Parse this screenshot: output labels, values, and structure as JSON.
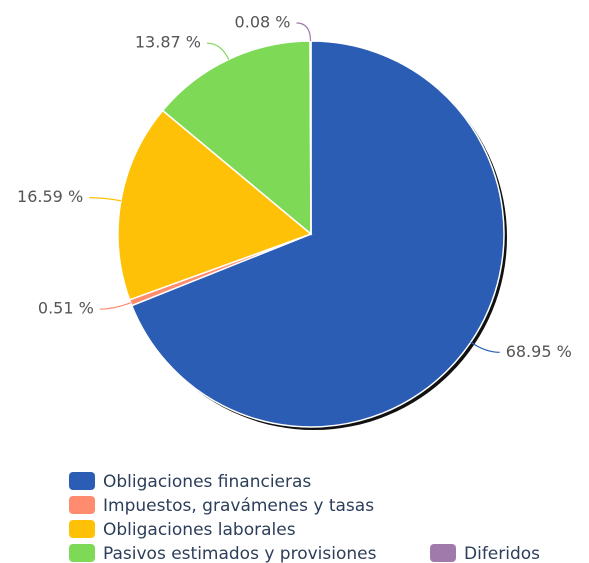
{
  "chart_data": {
    "type": "pie",
    "categories": [
      "Obligaciones financieras",
      "Impuestos, gravámenes y tasas",
      "Obligaciones laborales",
      "Pasivos estimados y provisiones",
      "Diferidos"
    ],
    "values": [
      68.95,
      0.51,
      16.59,
      13.87,
      0.08
    ],
    "value_labels": [
      "68.95 %",
      "0.51 %",
      "16.59 %",
      "13.87 %",
      "0.08 %"
    ],
    "colors": [
      "#2b5db5",
      "#ff8c6e",
      "#ffc107",
      "#7ed957",
      "#a07aab"
    ]
  }
}
